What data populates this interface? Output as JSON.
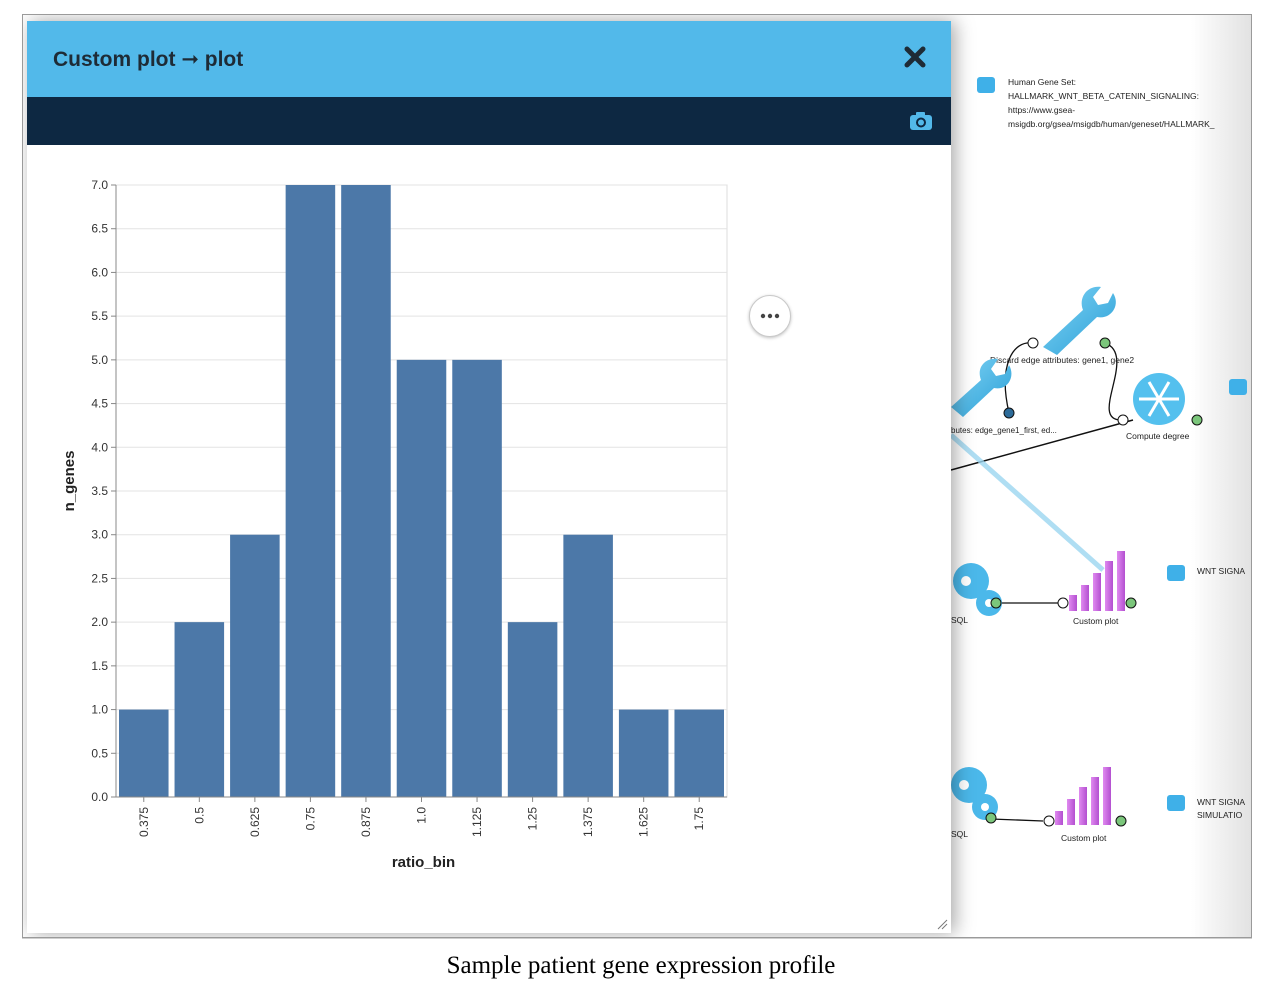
{
  "popup": {
    "title": "Custom plot ➞ plot",
    "close_icon": "close-icon",
    "camera_icon": "camera-icon",
    "menu_icon": "more-horizontal-icon"
  },
  "workspace": {
    "gene_set_text": [
      "Human Gene Set:",
      "HALLMARK_WNT_BETA_CATENIN_SIGNALING:",
      "https://www.gsea-",
      "msigdb.org/gsea/msigdb/human/geneset/HALLMARK_"
    ],
    "discard_label": "Discard edge attributes: gene1, gene2",
    "edge_label": "butes: edge_gene1_first, ed...",
    "compute_degree_label": "Compute degree",
    "sql_label_1": "SQL",
    "custom_plot_label_1": "Custom plot",
    "wnt_label_1": "WNT SIGNA",
    "sql_label_2": "SQL",
    "custom_plot_label_2": "Custom plot",
    "wnt_label_2a": "WNT SIGNA",
    "wnt_label_2b": "SIMULATIO"
  },
  "caption": "Sample patient gene expression profile",
  "colors": {
    "header": "#52b9ea",
    "toolbar": "#0d2842",
    "bar": "#4c78a8"
  },
  "chart_data": {
    "type": "bar",
    "categories": [
      "0.375",
      "0.5",
      "0.625",
      "0.75",
      "0.875",
      "1.0",
      "1.125",
      "1.25",
      "1.375",
      "1.625",
      "1.75"
    ],
    "values": [
      1,
      2,
      3,
      7,
      7,
      5,
      5,
      2,
      3,
      1,
      1
    ],
    "xlabel": "ratio_bin",
    "ylabel": "n_genes",
    "ylim": [
      0,
      7
    ],
    "yticks": [
      "0.0",
      "0.5",
      "1.0",
      "1.5",
      "2.0",
      "2.5",
      "3.0",
      "3.5",
      "4.0",
      "4.5",
      "5.0",
      "5.5",
      "6.0",
      "6.5",
      "7.0"
    ],
    "grid": true,
    "legend": "none"
  }
}
